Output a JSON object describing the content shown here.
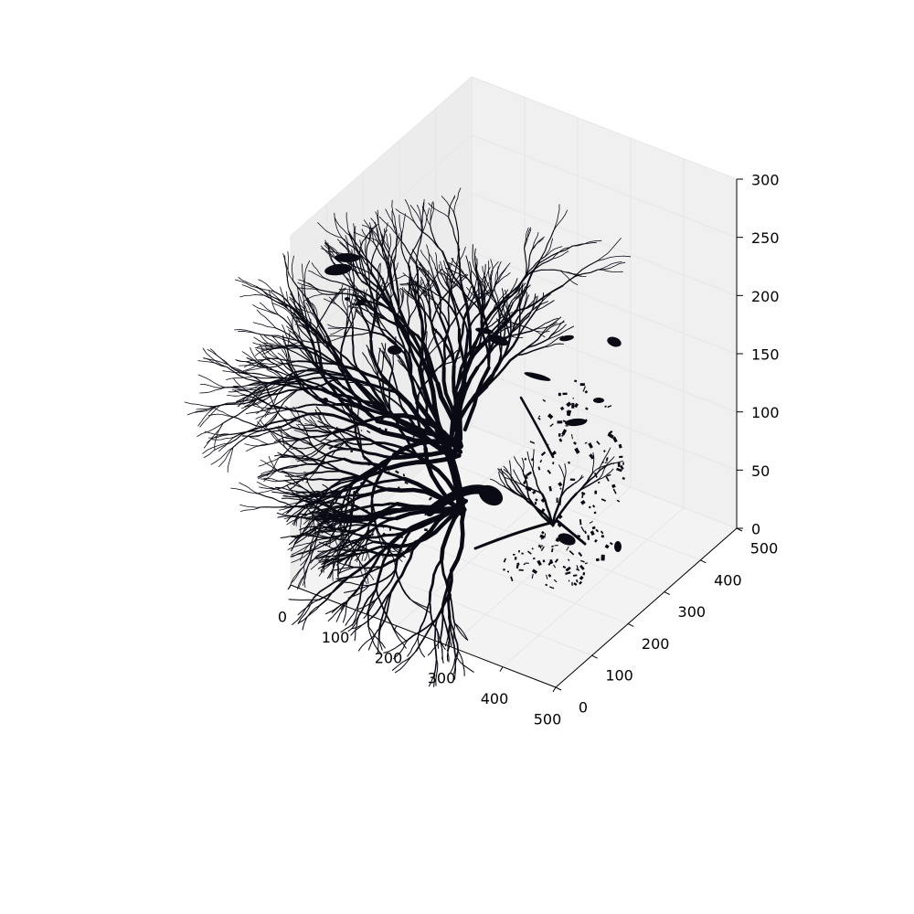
{
  "chart_data": {
    "type": "scatter",
    "projection": "3d",
    "title": "",
    "xlabel": "",
    "ylabel": "",
    "zlabel": "",
    "xlim": [
      0,
      500
    ],
    "ylim": [
      0,
      500
    ],
    "zlim": [
      0,
      300
    ],
    "xticks": [
      "0",
      "100",
      "200",
      "300",
      "400",
      "500"
    ],
    "yticks": [
      "0",
      "100",
      "200",
      "300",
      "400",
      "500"
    ],
    "zticks": [
      "0",
      "50",
      "100",
      "150",
      "200",
      "250",
      "300"
    ],
    "grid": true,
    "marker_color": "#0a0a14",
    "pane_colors": {
      "left": "#ececec",
      "back": "#f0f0f0",
      "floor": "#f3f3f3"
    },
    "series": [
      {
        "description_of_shape": "dense branching vascular voxel cloud",
        "clusters": [
          {
            "x": 200,
            "y": 250,
            "z": 150
          },
          {
            "x": 230,
            "y": 260,
            "z": 70
          },
          {
            "x": 320,
            "y": 300,
            "z": 80
          },
          {
            "x": 380,
            "y": 330,
            "z": 150
          },
          {
            "x": 80,
            "y": 330,
            "z": 260
          },
          {
            "x": 420,
            "y": 420,
            "z": 220
          }
        ]
      }
    ]
  }
}
